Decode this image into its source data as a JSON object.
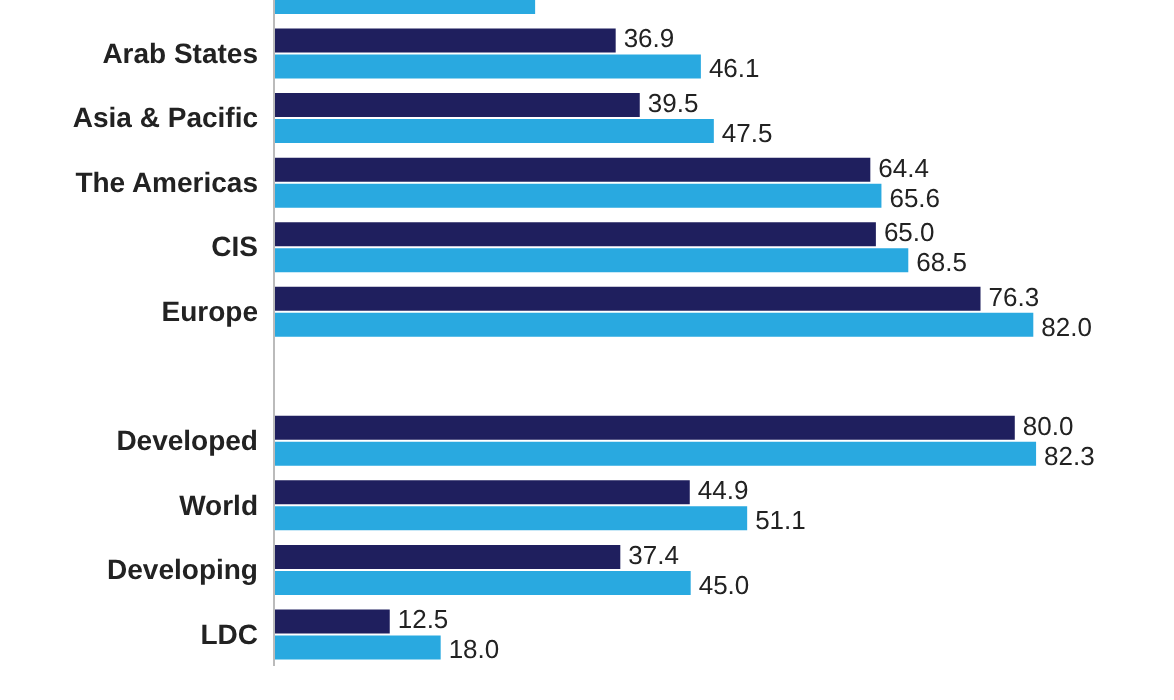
{
  "chart_data": {
    "type": "bar",
    "orientation": "horizontal",
    "categories": [
      null,
      "Arab States",
      "Asia & Pacific",
      "The Americas",
      "CIS",
      "Europe",
      null,
      "Developed",
      "World",
      "Developing",
      "LDC"
    ],
    "series": [
      {
        "color": "#1f1f5e",
        "values": [
          null,
          36.9,
          39.5,
          64.4,
          65.0,
          76.3,
          null,
          80.0,
          44.9,
          37.4,
          12.5
        ],
        "value_labels": [
          null,
          "36.9",
          "39.5",
          "64.4",
          "65.0",
          "76.3",
          null,
          "80.0",
          "44.9",
          "37.4",
          "12.5"
        ]
      },
      {
        "color": "#29a9e0",
        "values": [
          28.2,
          46.1,
          47.5,
          65.6,
          68.5,
          82.0,
          null,
          82.3,
          51.1,
          45.0,
          18.0
        ],
        "value_labels": [
          null,
          "46.1",
          "47.5",
          "65.6",
          "68.5",
          "82.0",
          null,
          "82.3",
          "51.1",
          "45.0",
          "18.0"
        ]
      }
    ],
    "tick_labels": "y"
  }
}
